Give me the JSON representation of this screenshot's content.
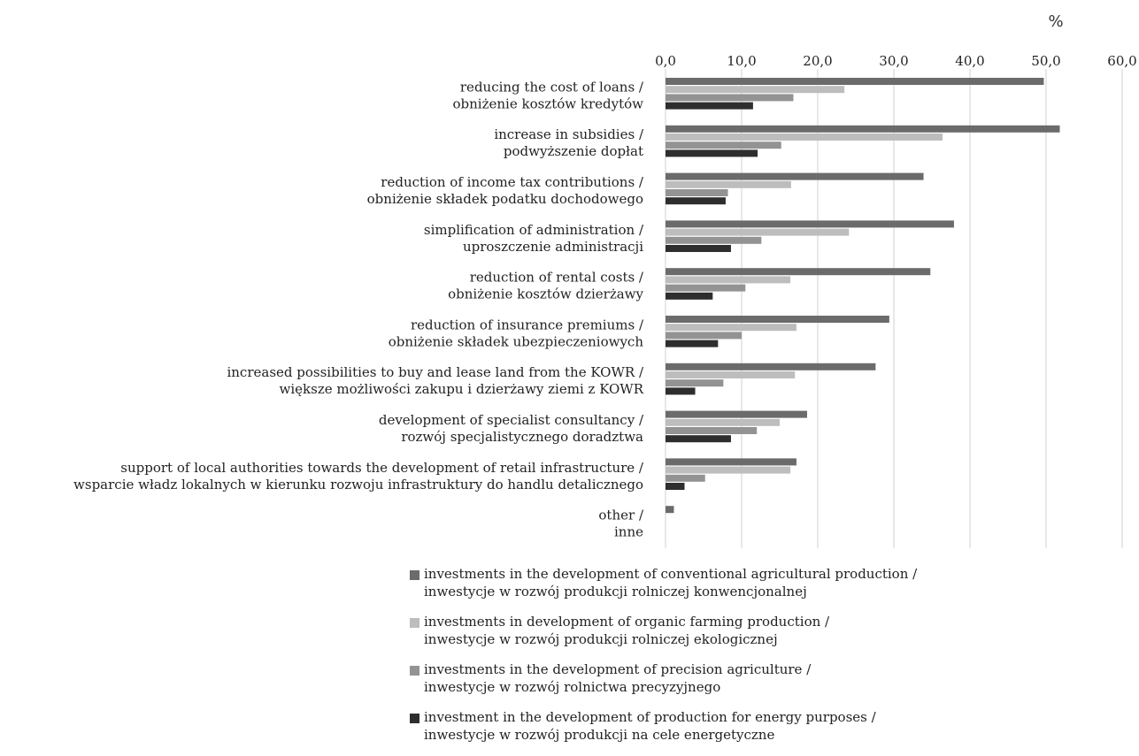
{
  "chart_data": {
    "type": "bar",
    "orientation": "horizontal",
    "unit_label": "%",
    "xlim": [
      0,
      60
    ],
    "ticks": [
      "0,0",
      "10,0",
      "20,0",
      "30,0",
      "40,0",
      "50,0",
      "60,0"
    ],
    "tick_values": [
      0,
      10,
      20,
      30,
      40,
      50,
      60
    ],
    "grid": "vertical",
    "legend_position": "bottom",
    "categories": [
      {
        "line1": "reducing the cost of loans /",
        "line2": "obniżenie kosztów kredytów"
      },
      {
        "line1": "increase in subsidies /",
        "line2": "podwyższenie dopłat"
      },
      {
        "line1": "reduction of income tax contributions /",
        "line2": "obniżenie składek podatku dochodowego"
      },
      {
        "line1": "simplification of administration /",
        "line2": "uproszczenie administracji"
      },
      {
        "line1": "reduction of rental costs /",
        "line2": "obniżenie kosztów dzierżawy"
      },
      {
        "line1": "reduction of insurance premiums /",
        "line2": "obniżenie składek ubezpieczeniowych"
      },
      {
        "line1": "increased possibilities to buy and lease land from the KOWR /",
        "line2": "większe możliwości zakupu i dzierżawy ziemi z KOWR"
      },
      {
        "line1": "development of specialist consultancy /",
        "line2": "rozwój specjalistycznego doradztwa"
      },
      {
        "line1": "support of local authorities towards the development of retail infrastructure /",
        "line2": "wsparcie władz lokalnych w kierunku rozwoju infrastruktury do handlu detalicznego"
      },
      {
        "line1": "other /",
        "line2": "inne"
      }
    ],
    "series": [
      {
        "name_line1": "investments in the development of conventional agricultural production /",
        "name_line2": "inwestycje w rozwój produkcji rolniczej konwencjonalnej",
        "color": "#6b6b6b",
        "values": [
          49.7,
          51.8,
          33.9,
          37.9,
          34.8,
          29.4,
          27.6,
          18.6,
          17.2,
          1.1
        ]
      },
      {
        "name_line1": "investments in development of organic farming production /",
        "name_line2": "inwestycje w rozwój produkcji rolniczej ekologicznej",
        "color": "#bdbdbd",
        "values": [
          23.5,
          36.4,
          16.5,
          24.1,
          16.4,
          17.2,
          17.0,
          15.0,
          16.4,
          0
        ]
      },
      {
        "name_line1": "investments in the development of precision agriculture /",
        "name_line2": "inwestycje w rozwój rolnictwa precyzyjnego",
        "color": "#939393",
        "values": [
          16.8,
          15.2,
          8.2,
          12.6,
          10.5,
          10.0,
          7.6,
          12.0,
          5.2,
          0
        ]
      },
      {
        "name_line1": "investment in the development of production for energy purposes /",
        "name_line2": "inwestycje w rozwój produkcji na cele energetyczne",
        "color": "#2e2e2e",
        "values": [
          11.5,
          12.1,
          7.9,
          8.6,
          6.2,
          6.9,
          3.9,
          8.6,
          2.5,
          0
        ]
      }
    ]
  }
}
